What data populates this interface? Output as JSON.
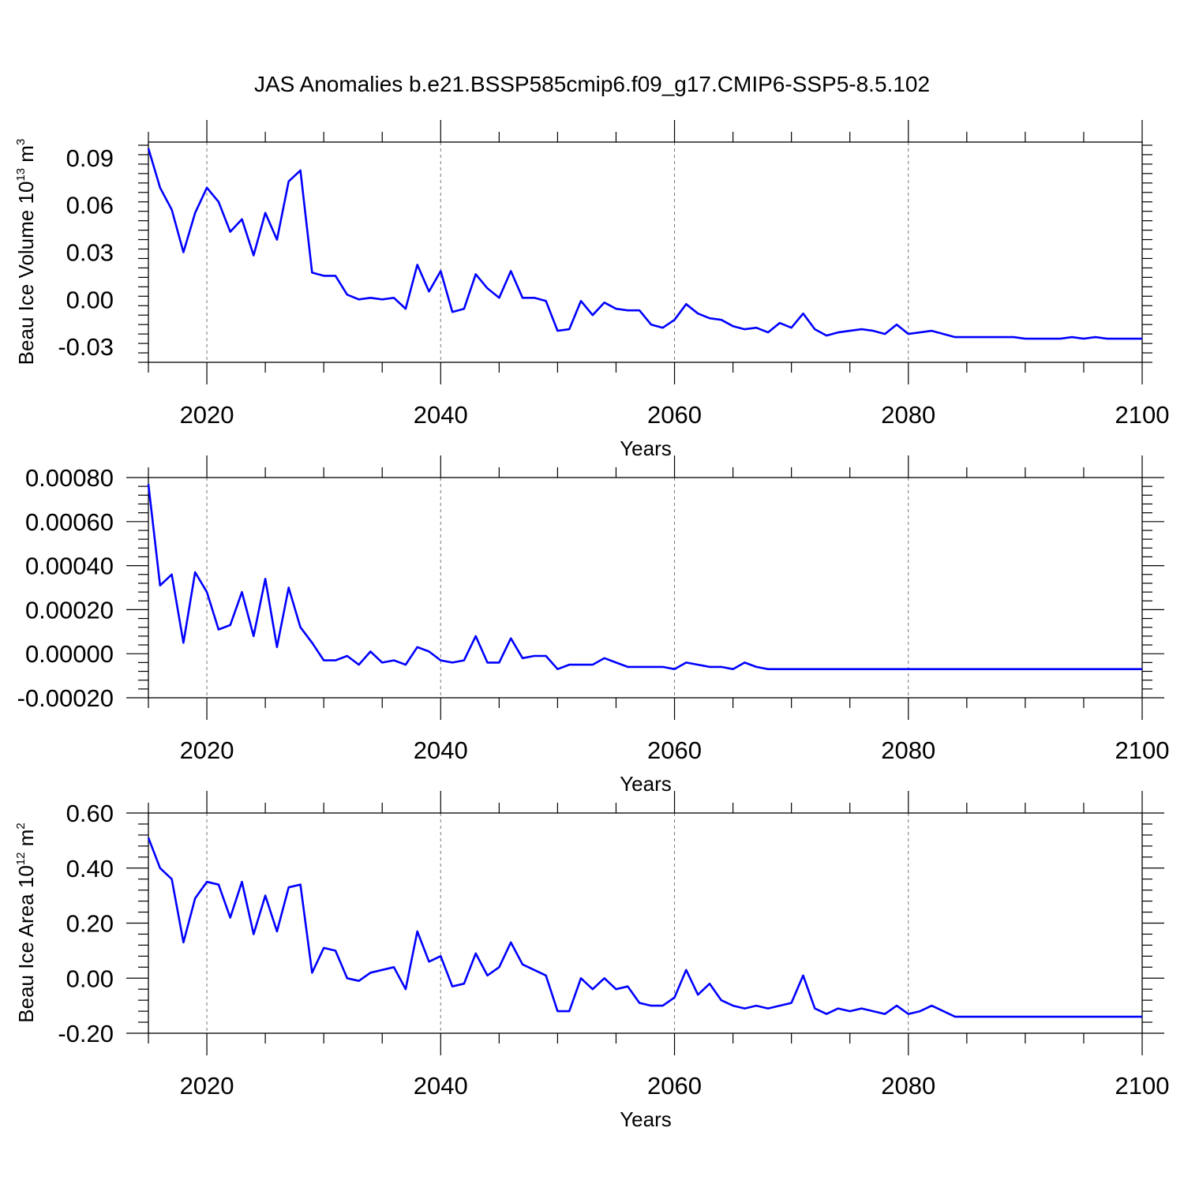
{
  "figure": {
    "title": "JAS Anomalies b.e21.BSSP585cmip6.f09_g17.CMIP6-SSP5-8.5.102"
  },
  "chart_data": [
    {
      "type": "line",
      "title": "JAS Anomalies b.e21.BSSP585cmip6.f09_g17.CMIP6-SSP5-8.5.102",
      "xlabel": "Years",
      "ylabel": "Beau Ice Volume 10",
      "ylabel_exp": "13",
      "ylabel_unit": " m",
      "ylabel_unit_exp": "3",
      "xlim": [
        2015,
        2100
      ],
      "ylim": [
        -0.04,
        0.1
      ],
      "xticks": [
        2020,
        2040,
        2060,
        2080,
        2100
      ],
      "yticks": [
        -0.03,
        0.0,
        0.03,
        0.06,
        0.09
      ],
      "ytick_labels": [
        "-0.03",
        "0.00",
        "0.03",
        "0.06",
        "0.09"
      ],
      "grid": "dashed vertical lines at major x ticks",
      "color": "#0000ff",
      "x_start": 2015,
      "series": [
        {
          "values": [
            0.096,
            0.071,
            0.057,
            0.03,
            0.055,
            0.071,
            0.062,
            0.043,
            0.051,
            0.028,
            0.055,
            0.038,
            0.075,
            0.082,
            0.017,
            0.015,
            0.015,
            0.003,
            0.0,
            0.001,
            0.0,
            0.001,
            -0.006,
            0.022,
            0.005,
            0.018,
            -0.008,
            -0.006,
            0.016,
            0.007,
            0.001,
            0.018,
            0.001,
            0.001,
            -0.001,
            -0.02,
            -0.019,
            -0.001,
            -0.01,
            -0.002,
            -0.006,
            -0.007,
            -0.007,
            -0.016,
            -0.018,
            -0.013,
            -0.003,
            -0.009,
            -0.012,
            -0.013,
            -0.017,
            -0.019,
            -0.018,
            -0.021,
            -0.015,
            -0.018,
            -0.009,
            -0.019,
            -0.023,
            -0.021,
            -0.02,
            -0.019,
            -0.02,
            -0.022,
            -0.016,
            -0.022,
            -0.021,
            -0.02,
            -0.022,
            -0.024,
            -0.024,
            -0.024,
            -0.024,
            -0.024,
            -0.024,
            -0.025,
            -0.025,
            -0.025,
            -0.025,
            -0.024,
            -0.025,
            -0.024,
            -0.025,
            -0.025,
            -0.025,
            -0.025
          ]
        }
      ]
    },
    {
      "type": "line",
      "xlabel": "Years",
      "ylabel": "",
      "xlim": [
        2015,
        2100
      ],
      "ylim": [
        -0.0002,
        0.0008
      ],
      "xticks": [
        2020,
        2040,
        2060,
        2080,
        2100
      ],
      "yticks": [
        -0.0002,
        0.0,
        0.0002,
        0.0004,
        0.0006,
        0.0008
      ],
      "ytick_labels": [
        "-0.00020",
        "0.00000",
        "0.00020",
        "0.00040",
        "0.00060",
        "0.00080"
      ],
      "grid": "dashed vertical lines at major x ticks",
      "color": "#0000ff",
      "x_start": 2015,
      "series": [
        {
          "values": [
            0.00077,
            0.00031,
            0.00036,
            5e-05,
            0.00037,
            0.00028,
            0.00011,
            0.00013,
            0.00028,
            8e-05,
            0.00034,
            3e-05,
            0.0003,
            0.00012,
            5e-05,
            -3e-05,
            -3e-05,
            -1e-05,
            -5e-05,
            1e-05,
            -4e-05,
            -3e-05,
            -5e-05,
            3e-05,
            1e-05,
            -3e-05,
            -4e-05,
            -3e-05,
            8e-05,
            -4e-05,
            -4e-05,
            7e-05,
            -2e-05,
            -1e-05,
            -1e-05,
            -7e-05,
            -5e-05,
            -5e-05,
            -5e-05,
            -2e-05,
            -4e-05,
            -6e-05,
            -6e-05,
            -6e-05,
            -6e-05,
            -7e-05,
            -4e-05,
            -5e-05,
            -6e-05,
            -6e-05,
            -7e-05,
            -4e-05,
            -6e-05,
            -7e-05,
            -7e-05,
            -7e-05,
            -7e-05,
            -7e-05,
            -7e-05,
            -7e-05,
            -7e-05,
            -7e-05,
            -7e-05,
            -7e-05,
            -7e-05,
            -7e-05,
            -7e-05,
            -7e-05,
            -7e-05,
            -7e-05,
            -7e-05,
            -7e-05,
            -7e-05,
            -7e-05,
            -7e-05,
            -7e-05,
            -7e-05,
            -7e-05,
            -7e-05,
            -7e-05,
            -7e-05,
            -7e-05,
            -7e-05,
            -7e-05,
            -7e-05,
            -7e-05
          ]
        }
      ]
    },
    {
      "type": "line",
      "xlabel": "Years",
      "ylabel": "Beau Ice Area 10",
      "ylabel_exp": "12",
      "ylabel_unit": " m",
      "ylabel_unit_exp": "2",
      "xlim": [
        2015,
        2100
      ],
      "ylim": [
        -0.2,
        0.6
      ],
      "xticks": [
        2020,
        2040,
        2060,
        2080,
        2100
      ],
      "yticks": [
        -0.2,
        0.0,
        0.2,
        0.4,
        0.6
      ],
      "ytick_labels": [
        "-0.20",
        "0.00",
        "0.20",
        "0.40",
        "0.60"
      ],
      "grid": "dashed vertical lines at major x ticks",
      "color": "#0000ff",
      "x_start": 2015,
      "series": [
        {
          "values": [
            0.51,
            0.4,
            0.36,
            0.13,
            0.29,
            0.35,
            0.34,
            0.22,
            0.35,
            0.16,
            0.3,
            0.17,
            0.33,
            0.34,
            0.02,
            0.11,
            0.1,
            0.0,
            -0.01,
            0.02,
            0.03,
            0.04,
            -0.04,
            0.17,
            0.06,
            0.08,
            -0.03,
            -0.02,
            0.09,
            0.01,
            0.04,
            0.13,
            0.05,
            0.03,
            0.01,
            -0.12,
            -0.12,
            0.0,
            -0.04,
            0.0,
            -0.04,
            -0.03,
            -0.09,
            -0.1,
            -0.1,
            -0.07,
            0.03,
            -0.06,
            -0.02,
            -0.08,
            -0.1,
            -0.11,
            -0.1,
            -0.11,
            -0.1,
            -0.09,
            0.01,
            -0.11,
            -0.13,
            -0.11,
            -0.12,
            -0.11,
            -0.12,
            -0.13,
            -0.1,
            -0.13,
            -0.12,
            -0.1,
            -0.12,
            -0.14,
            -0.14,
            -0.14,
            -0.14,
            -0.14,
            -0.14,
            -0.14,
            -0.14,
            -0.14,
            -0.14,
            -0.14,
            -0.14,
            -0.14,
            -0.14,
            -0.14,
            -0.14,
            -0.14
          ]
        }
      ]
    }
  ]
}
